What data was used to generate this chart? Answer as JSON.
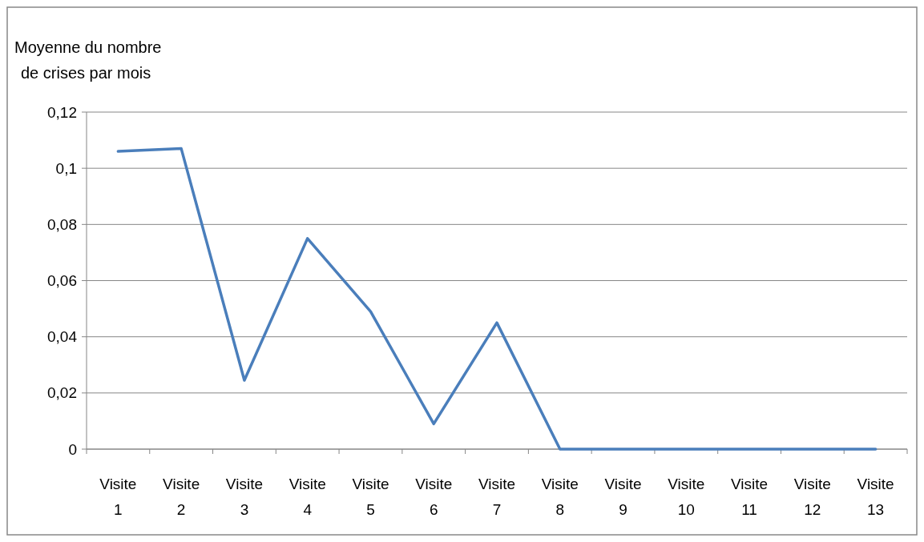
{
  "chart_data": {
    "type": "line",
    "ylabel": "Moyenne du nombre de crises par mois",
    "categories": [
      "Visite 1",
      "Visite 2",
      "Visite 3",
      "Visite 4",
      "Visite 5",
      "Visite 6",
      "Visite 7",
      "Visite 8",
      "Visite 9",
      "Visite 10",
      "Visite 11",
      "Visite 12",
      "Visite 13"
    ],
    "series": [
      {
        "color": "#4a7ebb",
        "values": [
          0.106,
          0.107,
          0.0245,
          0.075,
          0.049,
          0.009,
          0.045,
          0,
          0,
          0,
          0,
          0,
          0
        ]
      }
    ],
    "ylim": [
      0,
      0.12
    ],
    "yticks": [
      0,
      {
        "value": 0.02,
        "label": "0,02"
      },
      {
        "value": 0.04,
        "label": "0,04"
      },
      {
        "value": 0.06,
        "label": "0,06"
      },
      {
        "value": 0.08,
        "label": "0,08"
      },
      {
        "value": 0.1,
        "label": "0,1"
      },
      {
        "value": 0.12,
        "label": "0,12"
      }
    ],
    "grid": "y",
    "marker": "none",
    "line_style": "solid"
  }
}
